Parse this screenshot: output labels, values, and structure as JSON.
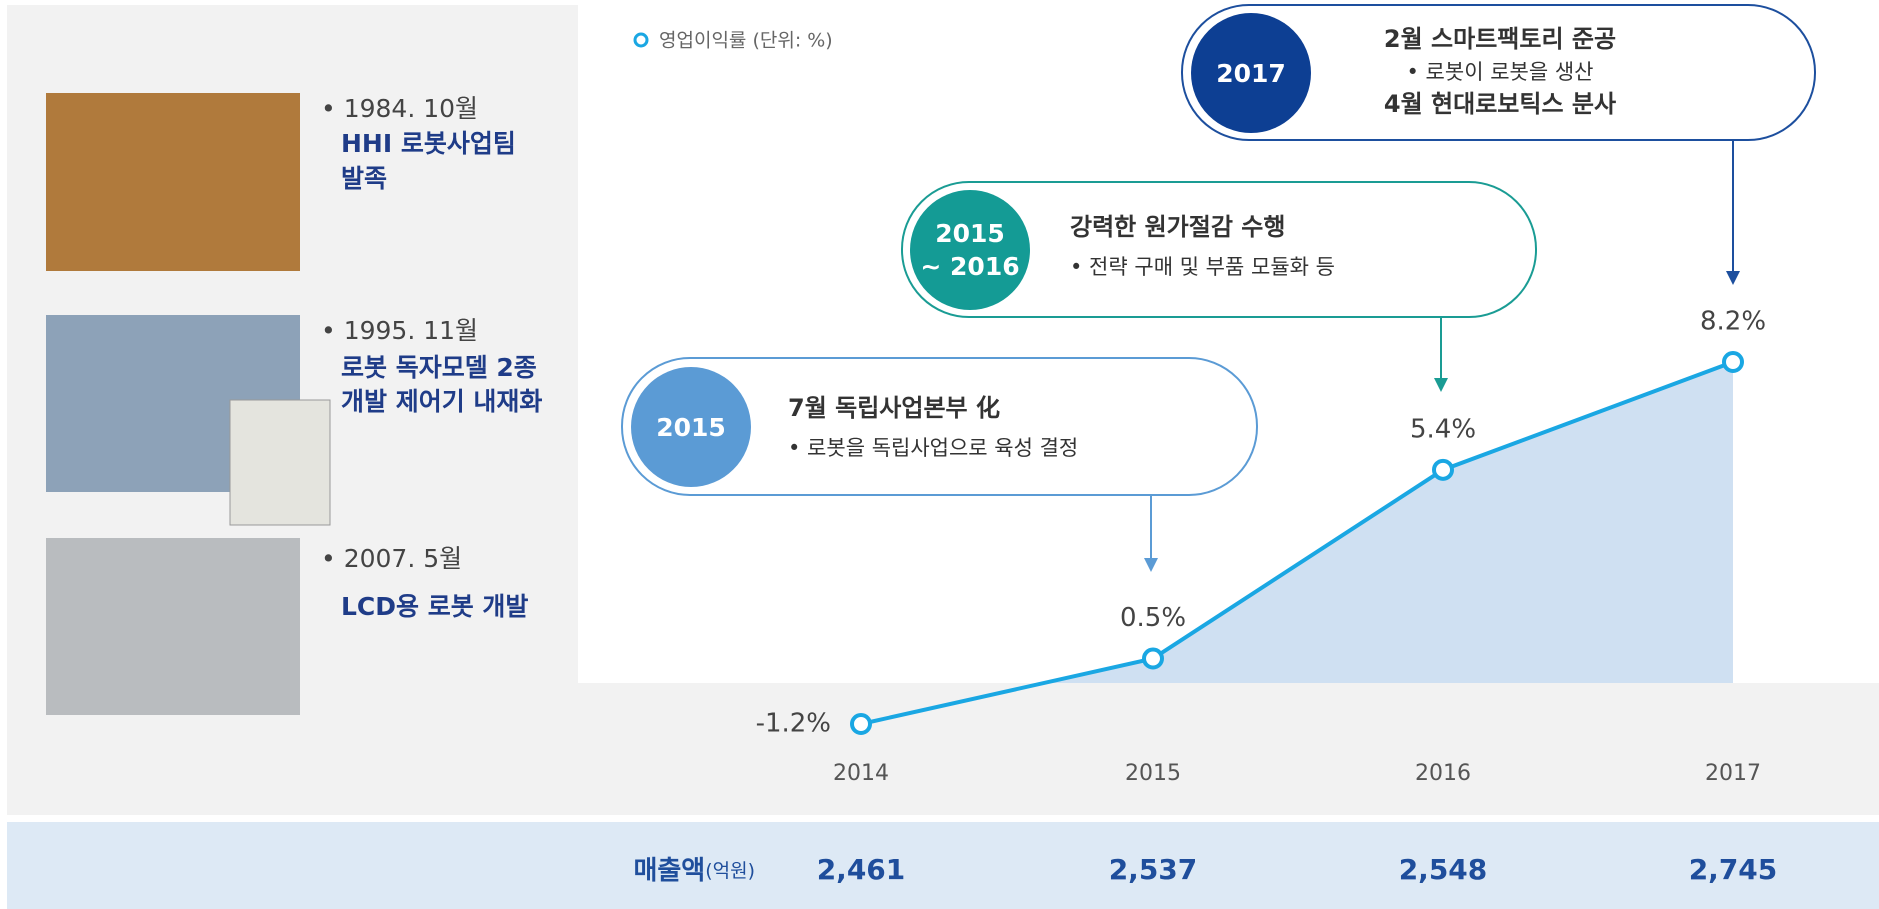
{
  "chart_data": {
    "type": "line",
    "categories": [
      "2014",
      "2015",
      "2016",
      "2017"
    ],
    "series": [
      {
        "name": "영업이익률 (단위: %)",
        "color": "#1aa7e3",
        "values": [
          -1.2,
          0.5,
          5.4,
          8.2
        ],
        "value_labels": [
          "-1.2%",
          "0.5%",
          "5.4%",
          "8.2%"
        ]
      }
    ]
  },
  "revenue": {
    "label": "매출액",
    "unit": "(억원)",
    "values": [
      "2,461",
      "2,537",
      "2,548",
      "2,745"
    ]
  },
  "milestones": [
    {
      "date": "• 1984. 10월",
      "lines": [
        "HHI 로봇사업팀",
        "발족"
      ]
    },
    {
      "date": "• 1995. 11월",
      "lines": [
        "로봇 독자모델 2종",
        "개발 제어기 내재화"
      ]
    },
    {
      "date": "• 2007. 5월",
      "lines": [
        "LCD용 로봇 개발"
      ]
    }
  ],
  "callouts": [
    {
      "period": [
        "2015"
      ],
      "lines": [
        "7월 독립사업본부 化",
        "• 로봇을 독립사업으로 육성 결정"
      ]
    },
    {
      "period": [
        "2015",
        "~ 2016"
      ],
      "lines": [
        "강력한 원가절감 수행",
        "• 전략 구매 및 부품 모듈화 등"
      ]
    },
    {
      "period": [
        "2017"
      ],
      "lines": [
        "2월 스마트팩토리 준공",
        "• 로봇이 로봇을 생산",
        "4월 현대로보틱스 분사"
      ]
    }
  ]
}
